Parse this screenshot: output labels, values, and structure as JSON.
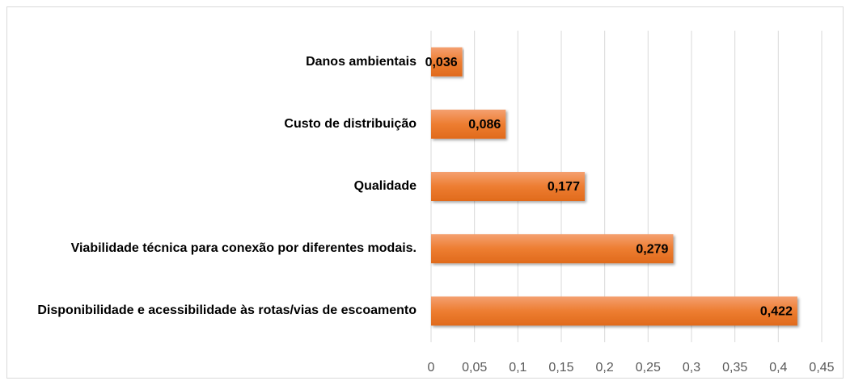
{
  "chart_data": {
    "type": "bar",
    "orientation": "horizontal",
    "categories": [
      "Danos ambientais",
      "Custo de distribuição",
      "Qualidade",
      "Viabilidade técnica para conexão por diferentes modais.",
      "Disponibilidade e acessibilidade às rotas/vias de escoamento"
    ],
    "values": [
      0.036,
      0.086,
      0.177,
      0.279,
      0.422
    ],
    "value_labels": [
      "0,036",
      "0,086",
      "0,177",
      "0,279",
      "0,422"
    ],
    "color": "#ed7d31",
    "xlim": [
      0,
      0.45
    ],
    "xticks": [
      0,
      {
        "value": 0.05,
        "label": "0,05"
      },
      {
        "value": 0.1,
        "label": "0,1"
      },
      {
        "value": 0.15,
        "label": "0,15"
      },
      {
        "value": 0.2,
        "label": "0,2"
      },
      {
        "value": 0.25,
        "label": "0,25"
      },
      {
        "value": 0.3,
        "label": "0,3"
      },
      {
        "value": 0.35,
        "label": "0,35"
      },
      {
        "value": 0.4,
        "label": "0,4"
      },
      {
        "value": 0.45,
        "label": "0,45"
      }
    ],
    "grid": true
  }
}
